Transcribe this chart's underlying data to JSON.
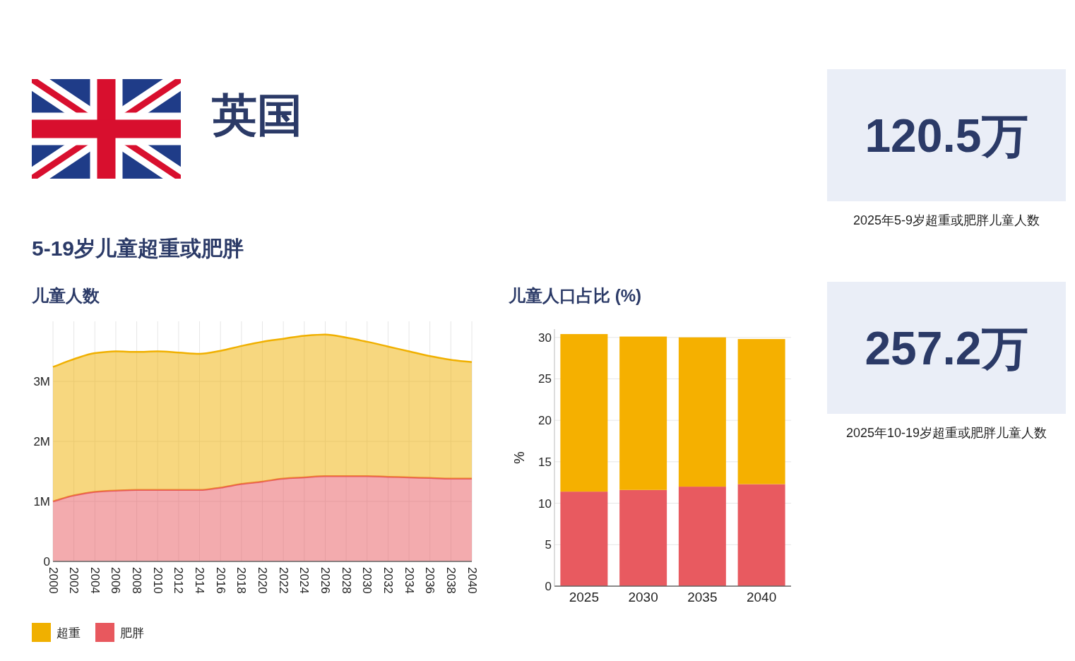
{
  "chart_data": [
    {
      "type": "other",
      "title": "英国",
      "subtitle": "5-19岁儿童超重或肥胖"
    },
    {
      "type": "area",
      "title": "儿童人数",
      "stacked": true,
      "grid": true,
      "legend": "bottom left",
      "x": [
        2000,
        2002,
        2004,
        2006,
        2008,
        2010,
        2012,
        2014,
        2016,
        2018,
        2020,
        2022,
        2024,
        2026,
        2028,
        2030,
        2032,
        2034,
        2036,
        2038,
        2040
      ],
      "xlim": [
        2000,
        2040
      ],
      "xticks": [
        2000,
        2002,
        2004,
        2006,
        2008,
        2010,
        2012,
        2014,
        2016,
        2018,
        2020,
        2022,
        2024,
        2026,
        2028,
        2030,
        2032,
        2034,
        2036,
        2038,
        2040
      ],
      "ylim": [
        0,
        4000000
      ],
      "yticks": [
        0,
        {
          "value": 1000000,
          "label": "1M"
        },
        {
          "value": 2000000,
          "label": "2M"
        },
        {
          "value": 3000000,
          "label": "3M"
        }
      ],
      "series": [
        {
          "name": "肥胖",
          "color": "#e8585e",
          "values": [
            1000000,
            1100000,
            1160000,
            1180000,
            1190000,
            1190000,
            1190000,
            1190000,
            1230000,
            1290000,
            1330000,
            1380000,
            1400000,
            1420000,
            1420000,
            1420000,
            1410000,
            1400000,
            1390000,
            1380000,
            1380000
          ]
        },
        {
          "name": "超重",
          "color": "#f0b000",
          "values": [
            2240000,
            2270000,
            2310000,
            2320000,
            2300000,
            2310000,
            2290000,
            2270000,
            2280000,
            2300000,
            2330000,
            2330000,
            2360000,
            2360000,
            2310000,
            2240000,
            2170000,
            2100000,
            2030000,
            1980000,
            1940000
          ]
        }
      ]
    },
    {
      "type": "bar",
      "title": "儿童人口占比 (%)",
      "ylabel": "%",
      "stacked": true,
      "grid": "y",
      "categories": [
        "2025",
        "2030",
        "2035",
        "2040"
      ],
      "ylim": [
        0,
        31
      ],
      "yticks": [
        0,
        5,
        10,
        15,
        20,
        25,
        30
      ],
      "series": [
        {
          "color": "#e85a60",
          "values": [
            11.4,
            11.6,
            12.0,
            12.3
          ]
        },
        {
          "color": "#f5b000",
          "values": [
            19.0,
            18.5,
            18.0,
            17.5
          ]
        }
      ]
    },
    {
      "type": "other",
      "annotations": [
        "120.5万",
        "2025年5-9岁超重或肥胖儿童人数",
        "257.2万",
        "2025年10-19岁超重或肥胖儿童人数"
      ]
    }
  ]
}
